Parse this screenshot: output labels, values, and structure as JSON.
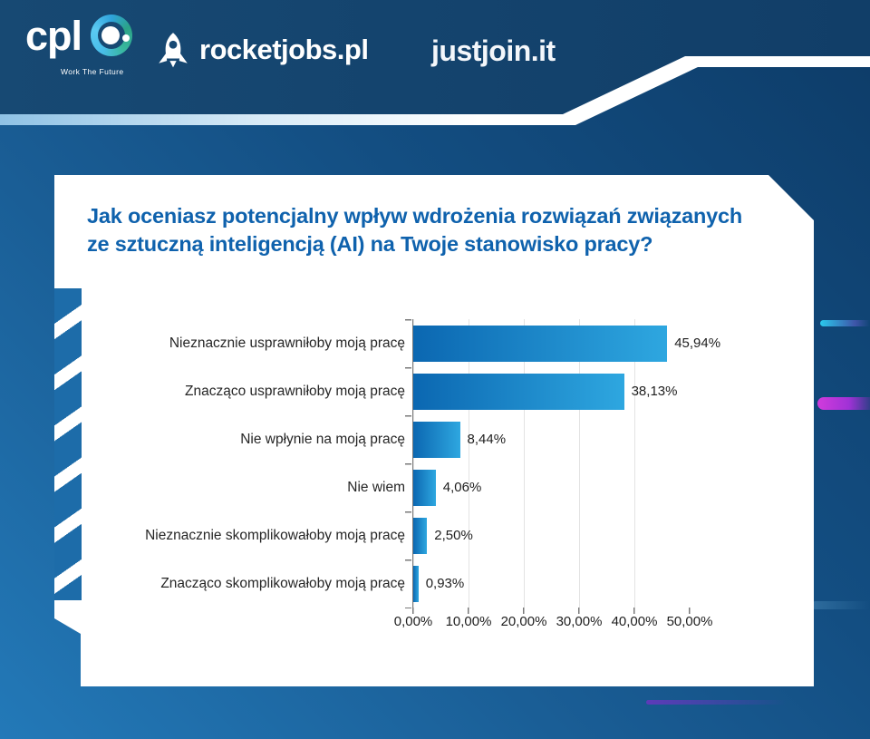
{
  "header": {
    "cpl": {
      "wordmark": "cpl",
      "tagline": "Work The Future"
    },
    "rocketjobs_label": "rocketjobs.pl",
    "justjoin_label": "justjoin.it"
  },
  "chart_data": {
    "type": "bar",
    "orientation": "horizontal",
    "title": "Jak oceniasz potencjalny wpływ wdrożenia rozwiązań związanych ze sztuczną inteligencją (AI) na Twoje stanowisko pracy?",
    "title_lines": [
      "Jak oceniasz potencjalny wpływ wdrożenia rozwiązań związanych",
      "ze sztuczną inteligencją (AI) na Twoje stanowisko pracy?"
    ],
    "categories": [
      "Nieznacznie usprawniłoby moją pracę",
      "Znacząco usprawniłoby moją pracę",
      "Nie wpłynie na moją pracę",
      "Nie wiem",
      "Nieznacznie skomplikowałoby moją pracę",
      "Znacząco skomplikowałoby moją pracę"
    ],
    "values": [
      45.94,
      38.13,
      8.44,
      4.06,
      2.5,
      0.93
    ],
    "value_labels": [
      "45,94%",
      "38,13%",
      "8,44%",
      "4,06%",
      "2,50%",
      "0,93%"
    ],
    "x_ticks": [
      "0,00%",
      "10,00%",
      "20,00%",
      "30,00%",
      "40,00%",
      "50,00%"
    ],
    "xlim": [
      0,
      50
    ],
    "grid": true,
    "legend": false
  },
  "colors": {
    "background_light": "#2379B8",
    "background_dark": "#0D3B67",
    "header_navy": "#174973",
    "title_blue": "#0F62AD",
    "bar_gradient_start": "#0B67B1",
    "bar_gradient_end": "#2EA7E0",
    "accent_cyan": "#2AC9EC",
    "accent_magenta": "#D13BDC",
    "accent_purple": "#6A35C0"
  }
}
